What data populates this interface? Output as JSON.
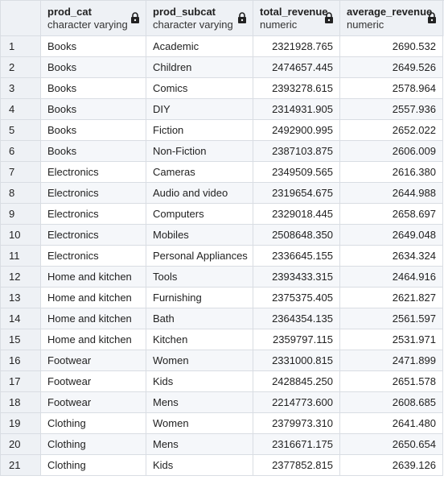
{
  "columns": [
    {
      "name": "prod_cat",
      "type": "character varying"
    },
    {
      "name": "prod_subcat",
      "type": "character varying"
    },
    {
      "name": "total_revenue",
      "type": "numeric"
    },
    {
      "name": "average_revenue",
      "type": "numeric"
    }
  ],
  "rows": [
    {
      "n": "1",
      "prod_cat": "Books",
      "prod_subcat": "Academic",
      "total_revenue": "2321928.765",
      "average_revenue": "2690.532"
    },
    {
      "n": "2",
      "prod_cat": "Books",
      "prod_subcat": "Children",
      "total_revenue": "2474657.445",
      "average_revenue": "2649.526"
    },
    {
      "n": "3",
      "prod_cat": "Books",
      "prod_subcat": "Comics",
      "total_revenue": "2393278.615",
      "average_revenue": "2578.964"
    },
    {
      "n": "4",
      "prod_cat": "Books",
      "prod_subcat": "DIY",
      "total_revenue": "2314931.905",
      "average_revenue": "2557.936"
    },
    {
      "n": "5",
      "prod_cat": "Books",
      "prod_subcat": "Fiction",
      "total_revenue": "2492900.995",
      "average_revenue": "2652.022"
    },
    {
      "n": "6",
      "prod_cat": "Books",
      "prod_subcat": "Non-Fiction",
      "total_revenue": "2387103.875",
      "average_revenue": "2606.009"
    },
    {
      "n": "7",
      "prod_cat": "Electronics",
      "prod_subcat": "Cameras",
      "total_revenue": "2349509.565",
      "average_revenue": "2616.380"
    },
    {
      "n": "8",
      "prod_cat": "Electronics",
      "prod_subcat": "Audio and video",
      "total_revenue": "2319654.675",
      "average_revenue": "2644.988"
    },
    {
      "n": "9",
      "prod_cat": "Electronics",
      "prod_subcat": "Computers",
      "total_revenue": "2329018.445",
      "average_revenue": "2658.697"
    },
    {
      "n": "10",
      "prod_cat": "Electronics",
      "prod_subcat": "Mobiles",
      "total_revenue": "2508648.350",
      "average_revenue": "2649.048"
    },
    {
      "n": "11",
      "prod_cat": "Electronics",
      "prod_subcat": "Personal Appliances",
      "total_revenue": "2336645.155",
      "average_revenue": "2634.324"
    },
    {
      "n": "12",
      "prod_cat": "Home and kitchen",
      "prod_subcat": "Tools",
      "total_revenue": "2393433.315",
      "average_revenue": "2464.916"
    },
    {
      "n": "13",
      "prod_cat": "Home and kitchen",
      "prod_subcat": "Furnishing",
      "total_revenue": "2375375.405",
      "average_revenue": "2621.827"
    },
    {
      "n": "14",
      "prod_cat": "Home and kitchen",
      "prod_subcat": "Bath",
      "total_revenue": "2364354.135",
      "average_revenue": "2561.597"
    },
    {
      "n": "15",
      "prod_cat": "Home and kitchen",
      "prod_subcat": "Kitchen",
      "total_revenue": "2359797.115",
      "average_revenue": "2531.971"
    },
    {
      "n": "16",
      "prod_cat": "Footwear",
      "prod_subcat": "Women",
      "total_revenue": "2331000.815",
      "average_revenue": "2471.899"
    },
    {
      "n": "17",
      "prod_cat": "Footwear",
      "prod_subcat": "Kids",
      "total_revenue": "2428845.250",
      "average_revenue": "2651.578"
    },
    {
      "n": "18",
      "prod_cat": "Footwear",
      "prod_subcat": "Mens",
      "total_revenue": "2214773.600",
      "average_revenue": "2608.685"
    },
    {
      "n": "19",
      "prod_cat": "Clothing",
      "prod_subcat": "Women",
      "total_revenue": "2379973.310",
      "average_revenue": "2641.480"
    },
    {
      "n": "20",
      "prod_cat": "Clothing",
      "prod_subcat": "Mens",
      "total_revenue": "2316671.175",
      "average_revenue": "2650.654"
    },
    {
      "n": "21",
      "prod_cat": "Clothing",
      "prod_subcat": "Kids",
      "total_revenue": "2377852.815",
      "average_revenue": "2639.126"
    }
  ],
  "icons": {
    "column_lock": "lock-icon"
  },
  "colors": {
    "header_bg": "#eef1f5",
    "grid_line": "#d9dde3",
    "alt_row_bg": "#f5f7fa"
  }
}
